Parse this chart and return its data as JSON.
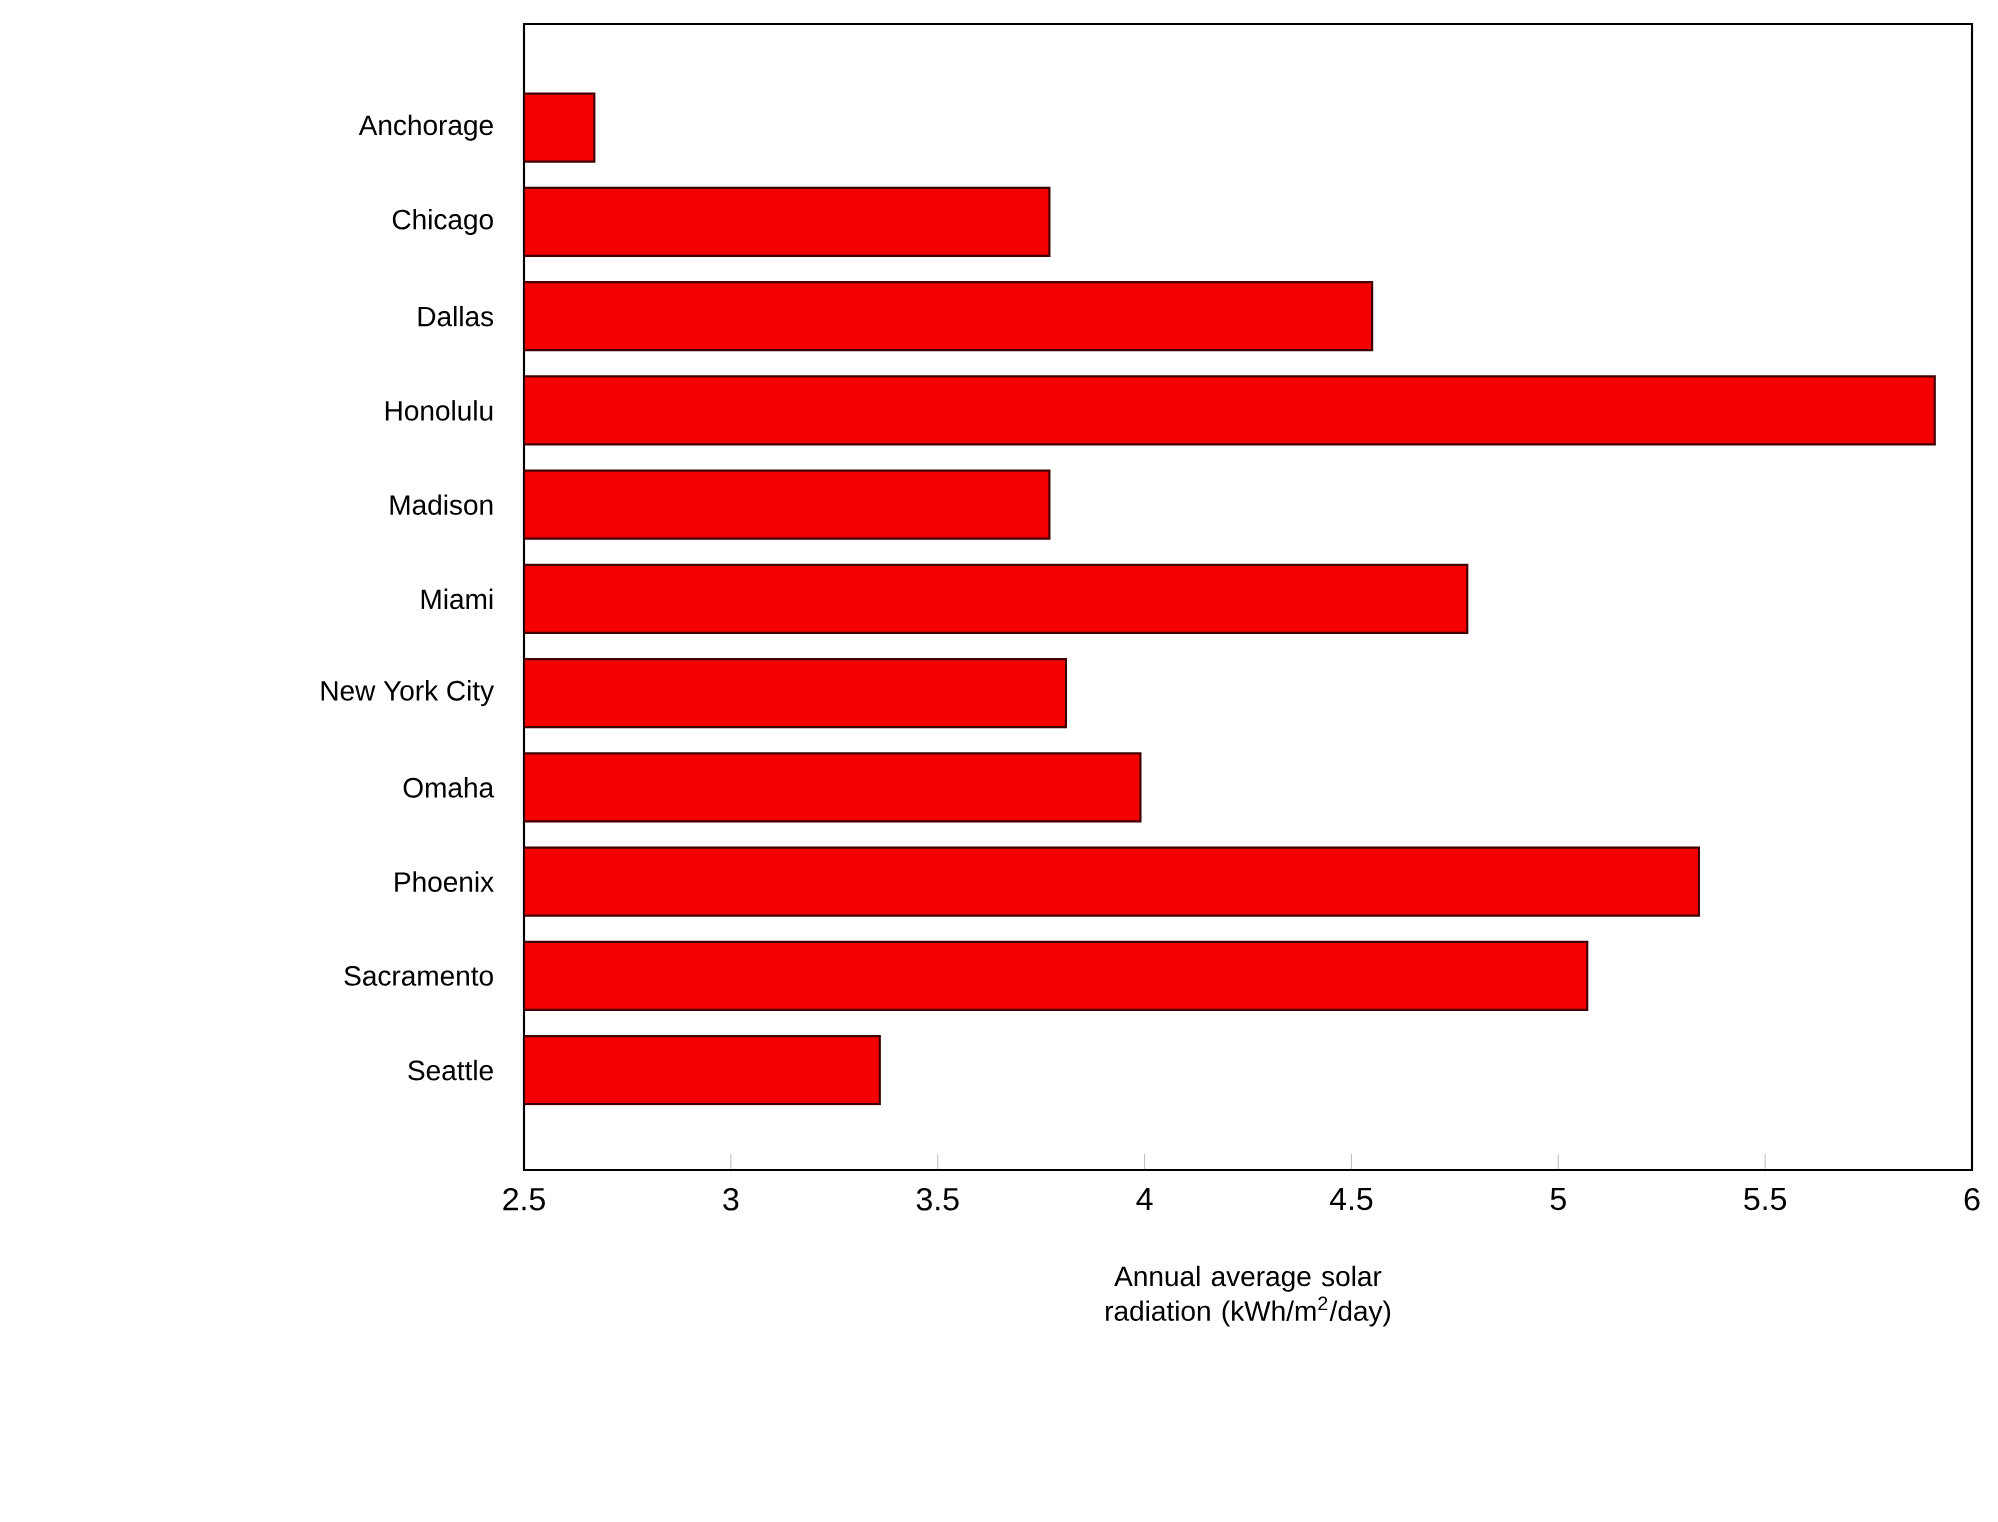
{
  "chart_data": {
    "type": "bar",
    "orientation": "horizontal",
    "xlabel": "Annual average solar radiation (kWh/m$^{2}$/day)",
    "categories": [
      "Anchorage",
      "Chicago",
      "Dallas",
      "Honolulu",
      "Madison",
      "Miami",
      "New York City",
      "Omaha",
      "Phoenix",
      "Sacramento",
      "Seattle"
    ],
    "values": [
      2.67,
      3.77,
      4.55,
      5.91,
      3.77,
      4.78,
      3.81,
      3.99,
      5.34,
      5.07,
      3.36
    ],
    "color": "#f50000",
    "xlim": [
      2.5,
      6
    ],
    "xticks": [
      2.5,
      3,
      3.5,
      4,
      4.5,
      5,
      5.5,
      6
    ]
  }
}
